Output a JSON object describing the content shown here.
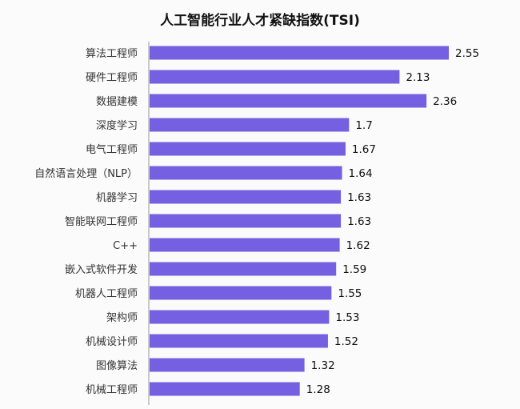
{
  "chart_data": {
    "type": "bar",
    "orientation": "horizontal",
    "title": "人工智能行业人才紧缺指数(TSI)",
    "xlabel": "",
    "ylabel": "",
    "xlim": [
      0,
      2.55
    ],
    "grid": false,
    "bar_color": "#7460E0",
    "categories": [
      "算法工程师",
      "硬件工程师",
      "数据建模",
      "深度学习",
      "电气工程师",
      "自然语言处理（NLP）",
      "机器学习",
      "智能联网工程师",
      "C++",
      "嵌入式软件开发",
      "机器人工程师",
      "架构师",
      "机械设计师",
      "图像算法",
      "机械工程师"
    ],
    "values": [
      2.55,
      2.13,
      2.36,
      1.7,
      1.67,
      1.64,
      1.63,
      1.63,
      1.62,
      1.59,
      1.55,
      1.53,
      1.52,
      1.32,
      1.28
    ]
  }
}
